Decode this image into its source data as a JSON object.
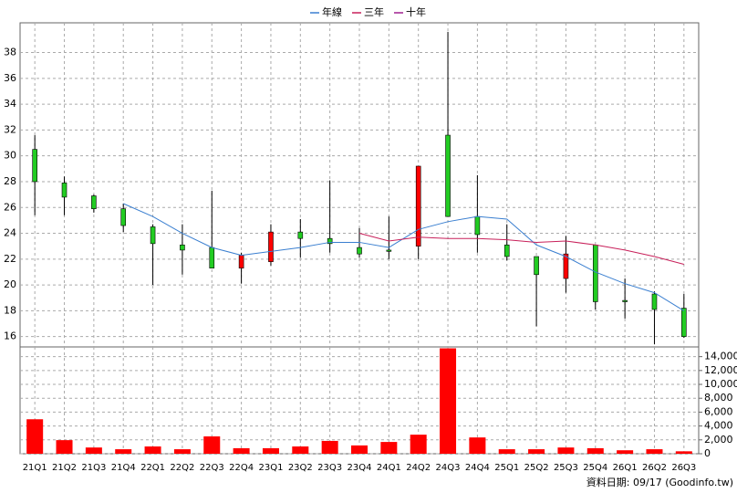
{
  "chart_data": [
    {
      "type": "candlestick",
      "ylim": [
        15.2,
        40.3
      ],
      "yticks": [
        16,
        18,
        20,
        22,
        24,
        26,
        28,
        30,
        32,
        34,
        36,
        38
      ],
      "grid": true,
      "up_color": "#ff0000",
      "down_color": "#22cc22",
      "open": [
        30.5,
        27.9,
        26.9,
        25.9,
        24.5,
        23.1,
        22.9,
        21.3,
        21.8,
        24.1,
        23.6,
        22.9,
        22.7,
        23.0,
        31.6,
        25.3,
        23.1,
        22.2,
        20.5,
        23.1,
        18.8,
        19.3,
        18.2
      ],
      "high": [
        31.6,
        28.4,
        27.0,
        26.3,
        24.7,
        24.7,
        27.3,
        22.5,
        24.7,
        25.1,
        28.1,
        24.4,
        25.3,
        29.2,
        39.6,
        28.5,
        24.7,
        22.2,
        23.8,
        23.1,
        20.5,
        19.5,
        19.3
      ],
      "low": [
        25.4,
        25.4,
        25.6,
        24.1,
        20.0,
        20.8,
        21.3,
        20.1,
        21.5,
        22.1,
        22.5,
        22.1,
        22.0,
        22.0,
        25.3,
        22.5,
        21.9,
        16.8,
        19.4,
        18.1,
        17.4,
        15.4,
        15.9
      ],
      "close": [
        28.0,
        26.8,
        25.9,
        24.6,
        23.2,
        22.7,
        21.3,
        22.3,
        24.1,
        23.6,
        23.2,
        22.4,
        22.6,
        29.2,
        25.3,
        23.9,
        22.2,
        20.8,
        22.4,
        18.7,
        18.7,
        18.1,
        16.0
      ],
      "series": [
        {
          "name": "年線",
          "color": "#3a7fd0",
          "values": [
            null,
            null,
            null,
            26.3,
            25.3,
            24.0,
            22.9,
            22.3,
            22.6,
            22.9,
            23.3,
            23.3,
            22.9,
            24.3,
            24.9,
            25.3,
            25.1,
            23.1,
            22.2,
            21.0,
            20.1,
            19.4,
            18.0
          ]
        },
        {
          "name": "三年",
          "color": "#c8205a",
          "values": [
            null,
            null,
            null,
            null,
            null,
            null,
            null,
            null,
            null,
            null,
            null,
            24.0,
            23.4,
            23.7,
            23.6,
            23.6,
            23.5,
            23.3,
            23.4,
            23.1,
            22.7,
            22.2,
            21.6
          ]
        },
        {
          "name": "十年",
          "color": "#a02090",
          "values": [
            null,
            null,
            null,
            null,
            null,
            null,
            null,
            null,
            null,
            null,
            null,
            null,
            null,
            null,
            null,
            null,
            null,
            null,
            null,
            null,
            null,
            null,
            null
          ]
        }
      ]
    },
    {
      "type": "bar",
      "color": "#ff0000",
      "categories": [
        "21Q1",
        "21Q2",
        "21Q3",
        "21Q4",
        "22Q1",
        "22Q2",
        "22Q3",
        "22Q4",
        "23Q1",
        "23Q2",
        "23Q3",
        "23Q4",
        "24Q1",
        "24Q2",
        "24Q3",
        "24Q4",
        "25Q1",
        "25Q2",
        "25Q3",
        "25Q4",
        "26Q1",
        "26Q2",
        "26Q3"
      ],
      "values": [
        4970,
        1960,
        900,
        650,
        1050,
        650,
        2500,
        800,
        800,
        1050,
        1850,
        1200,
        1700,
        2750,
        15200,
        2350,
        650,
        650,
        900,
        800,
        500,
        650,
        350
      ],
      "ylim": [
        0,
        15400
      ],
      "yticks": [
        0,
        {
          "value": 2000,
          "label": "2,000"
        },
        {
          "value": 4000,
          "label": "4,000"
        },
        {
          "value": 6000,
          "label": "6,000"
        },
        {
          "value": 8000,
          "label": "8,000"
        },
        {
          "value": 10000,
          "label": "10,000"
        },
        {
          "value": 12000,
          "label": "12,000"
        },
        {
          "value": 14000,
          "label": "14,000"
        }
      ],
      "grid": true,
      "footer": "資料日期: 09/17  (Goodinfo.tw)"
    }
  ]
}
